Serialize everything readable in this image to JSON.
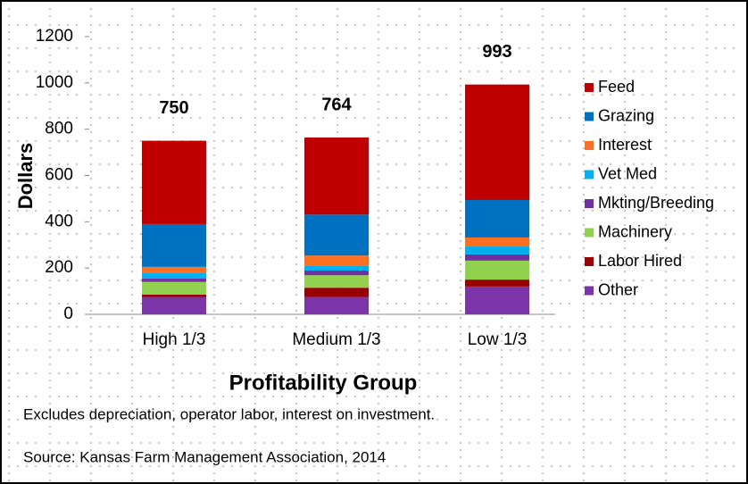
{
  "chart_data": {
    "type": "stacked-bar",
    "y_label": "Dollars",
    "x_label": "Profitability Group",
    "notes": [
      "Excludes depreciation, operator labor, interest on investment.",
      "Source: Kansas Farm Management Association, 2014"
    ],
    "categories": [
      "High 1/3",
      "Medium 1/3",
      "Low 1/3"
    ],
    "totals": [
      750,
      764,
      993
    ],
    "series": [
      {
        "name": "Other",
        "color": "#7b35a8",
        "values": [
          75,
          75,
          120
        ]
      },
      {
        "name": "Labor Hired",
        "color": "#990000",
        "values": [
          10,
          40,
          30
        ]
      },
      {
        "name": "Machinery",
        "color": "#92d050",
        "values": [
          55,
          54,
          82
        ]
      },
      {
        "name": "Mkting/Breeding",
        "color": "#7030a0",
        "values": [
          15,
          20,
          27
        ]
      },
      {
        "name": "Vet Med",
        "color": "#00b0f0",
        "values": [
          25,
          22,
          34
        ]
      },
      {
        "name": "Interest",
        "color": "#ff7020",
        "values": [
          25,
          43,
          39
        ]
      },
      {
        "name": "Grazing",
        "color": "#0070c0",
        "values": [
          185,
          177,
          162
        ]
      },
      {
        "name": "Feed",
        "color": "#c00000",
        "values": [
          360,
          333,
          499
        ]
      }
    ],
    "ylim": [
      0,
      1200
    ],
    "yticks": [
      0,
      200,
      400,
      600,
      800,
      1000,
      1200
    ]
  }
}
